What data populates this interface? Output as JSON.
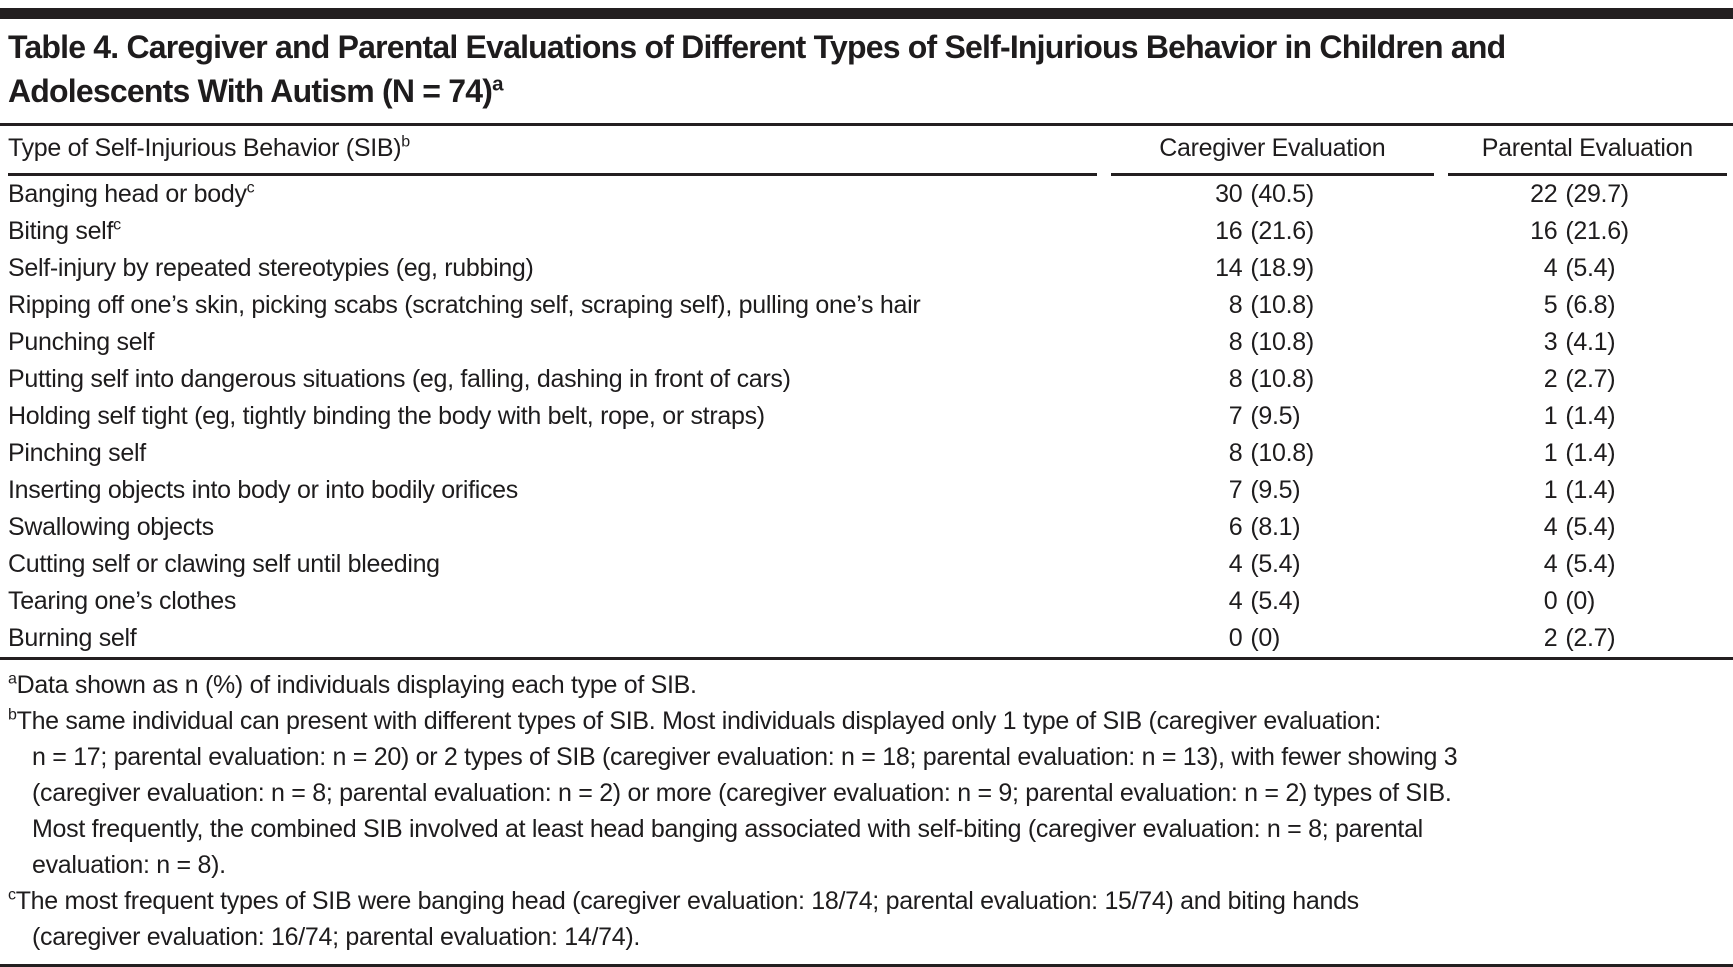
{
  "colors": {
    "ink": "#231f20",
    "background": "#ffffff"
  },
  "title": {
    "line1": "Table 4. Caregiver and Parental Evaluations of Different Types of Self-Injurious Behavior in Children and",
    "line2": "Adolescents With Autism (N = 74)",
    "sup": "a"
  },
  "table": {
    "columns": {
      "type_label": "Type of Self-Injurious Behavior (SIB)",
      "type_sup": "b",
      "caregiver": "Caregiver Evaluation",
      "parental": "Parental Evaluation"
    },
    "value_format": "n (%)",
    "rows": [
      {
        "label": "Banging head or body",
        "sup": "c",
        "caregiver": {
          "n": "30",
          "pct": "(40.5)"
        },
        "parental": {
          "n": "22",
          "pct": "(29.7)"
        }
      },
      {
        "label": "Biting self",
        "sup": "c",
        "caregiver": {
          "n": "16",
          "pct": "(21.6)"
        },
        "parental": {
          "n": "16",
          "pct": "(21.6)"
        }
      },
      {
        "label": "Self-injury by repeated stereotypies (eg, rubbing)",
        "caregiver": {
          "n": "14",
          "pct": "(18.9)"
        },
        "parental": {
          "n": "4",
          "pct": "(5.4)"
        }
      },
      {
        "label": "Ripping off one’s skin, picking scabs (scratching self, scraping self), pulling one’s hair",
        "caregiver": {
          "n": "8",
          "pct": "(10.8)"
        },
        "parental": {
          "n": "5",
          "pct": "(6.8)"
        }
      },
      {
        "label": "Punching self",
        "caregiver": {
          "n": "8",
          "pct": "(10.8)"
        },
        "parental": {
          "n": "3",
          "pct": "(4.1)"
        }
      },
      {
        "label": "Putting self into dangerous situations (eg, falling, dashing in front of cars)",
        "caregiver": {
          "n": "8",
          "pct": "(10.8)"
        },
        "parental": {
          "n": "2",
          "pct": "(2.7)"
        }
      },
      {
        "label": "Holding self tight (eg, tightly binding the body with belt, rope, or straps)",
        "caregiver": {
          "n": "7",
          "pct": "(9.5)"
        },
        "parental": {
          "n": "1",
          "pct": "(1.4)"
        }
      },
      {
        "label": "Pinching self",
        "caregiver": {
          "n": "8",
          "pct": "(10.8)"
        },
        "parental": {
          "n": "1",
          "pct": "(1.4)"
        }
      },
      {
        "label": "Inserting objects into body or into bodily orifices",
        "caregiver": {
          "n": "7",
          "pct": "(9.5)"
        },
        "parental": {
          "n": "1",
          "pct": "(1.4)"
        }
      },
      {
        "label": "Swallowing objects",
        "caregiver": {
          "n": "6",
          "pct": "(8.1)"
        },
        "parental": {
          "n": "4",
          "pct": "(5.4)"
        }
      },
      {
        "label": "Cutting self or clawing self until bleeding",
        "caregiver": {
          "n": "4",
          "pct": "(5.4)"
        },
        "parental": {
          "n": "4",
          "pct": "(5.4)"
        }
      },
      {
        "label": "Tearing one’s clothes",
        "caregiver": {
          "n": "4",
          "pct": "(5.4)"
        },
        "parental": {
          "n": "0",
          "pct": "(0)"
        }
      },
      {
        "label": "Burning self",
        "caregiver": {
          "n": "0",
          "pct": "(0)"
        },
        "parental": {
          "n": "2",
          "pct": "(2.7)"
        }
      }
    ]
  },
  "footnotes": [
    {
      "marker": "a",
      "lines": [
        "Data shown as n (%) of individuals displaying each type of SIB."
      ]
    },
    {
      "marker": "b",
      "lines": [
        "The same individual can present with different types of SIB. Most individuals displayed only 1 type of SIB (caregiver evaluation:",
        "n = 17; parental evaluation: n = 20) or 2 types of SIB (caregiver evaluation: n = 18; parental evaluation: n = 13), with fewer showing 3",
        "(caregiver evaluation: n = 8; parental evaluation: n = 2) or more (caregiver evaluation: n = 9; parental evaluation: n = 2) types of SIB.",
        "Most frequently, the combined SIB involved at least head banging associated with self-biting (caregiver evaluation: n = 8; parental",
        "evaluation: n = 8)."
      ]
    },
    {
      "marker": "c",
      "lines": [
        "The most frequent types of SIB were banging head (caregiver evaluation: 18/74; parental evaluation: 15/74) and biting hands",
        "(caregiver evaluation: 16/74; parental evaluation: 14/74)."
      ]
    }
  ]
}
